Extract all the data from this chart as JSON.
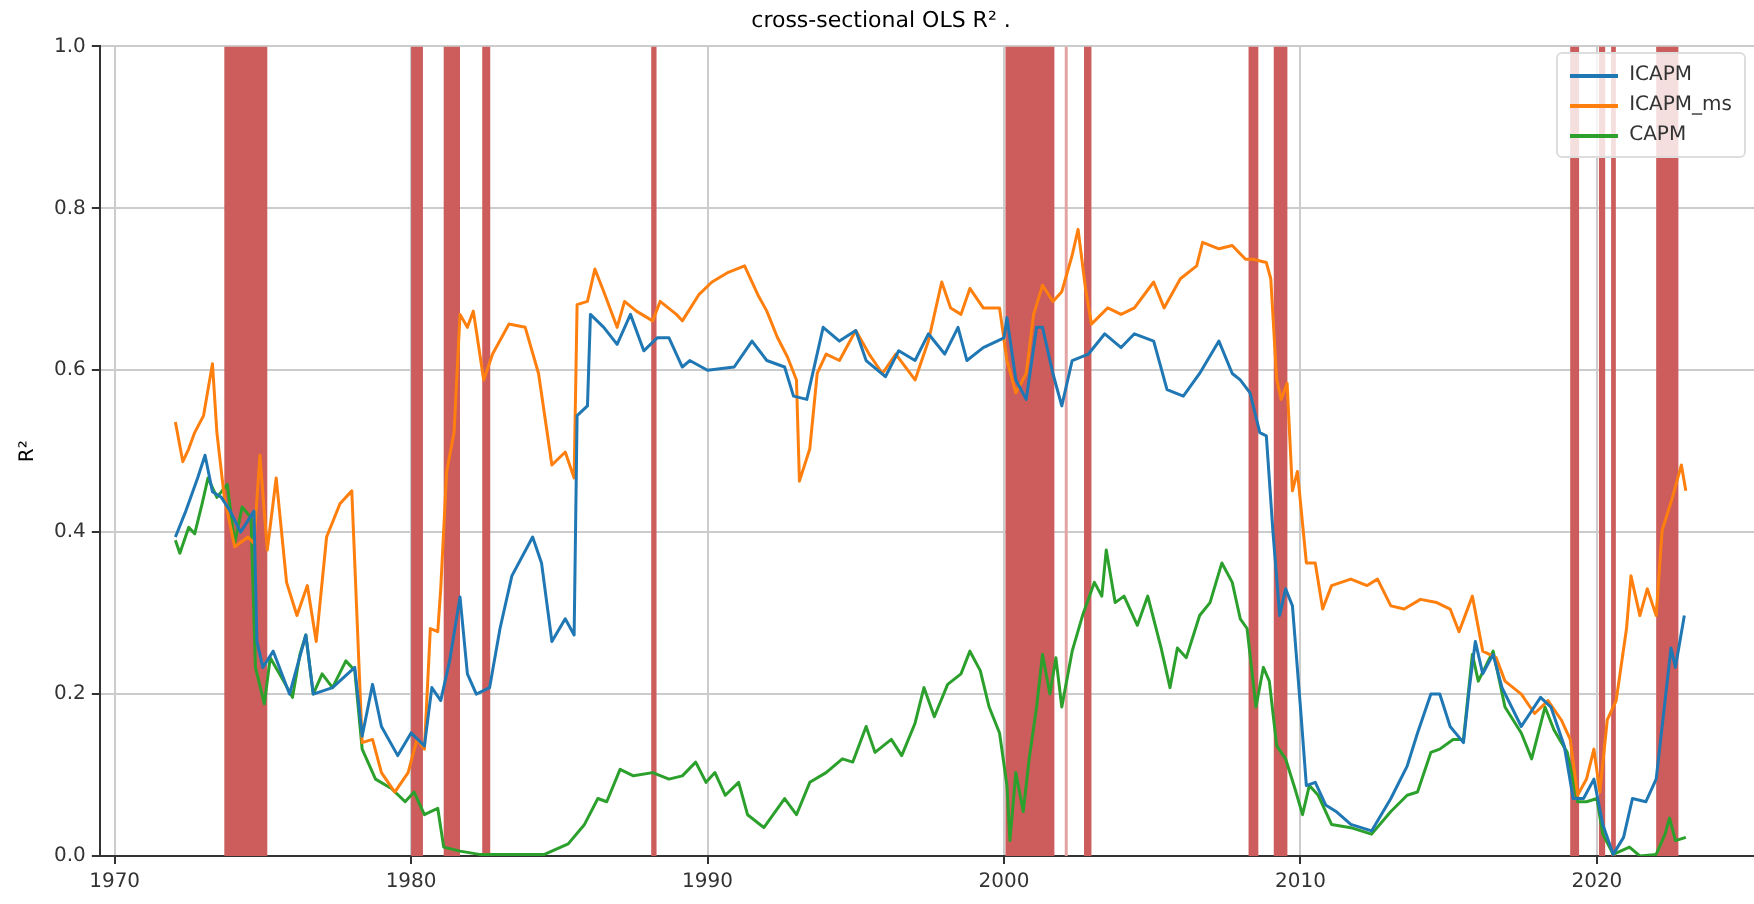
{
  "chart_data": {
    "type": "line",
    "title": "cross-sectional OLS R² .",
    "ylabel": "R²",
    "xlim": [
      1969.5,
      2025.3
    ],
    "xticks": [
      1970,
      1980,
      1990,
      2000,
      2010,
      2020
    ],
    "ylim": [
      0,
      1
    ],
    "yticks": [
      {
        "value": 0,
        "label": "0.0"
      },
      0.2,
      0.4,
      0.6,
      0.8,
      {
        "value": 1,
        "label": "1.0"
      }
    ],
    "grid": true,
    "legend": "top right",
    "marker": "none",
    "line_style": "solid",
    "series": [
      {
        "name": "ICAPM",
        "color": "#1f77b4",
        "x": [
          1972.05,
          1972.4,
          1972.8,
          1973.05,
          1973.3,
          1973.6,
          1973.9,
          1974.25,
          1974.7,
          1974.8,
          1975.0,
          1975.35,
          1975.9,
          1976.45,
          1976.7,
          1977.35,
          1978.1,
          1978.35,
          1978.7,
          1979.0,
          1979.55,
          1980.0,
          1980.45,
          1980.7,
          1981.0,
          1981.3,
          1981.65,
          1981.9,
          1982.2,
          1982.65,
          1983.0,
          1983.4,
          1984.1,
          1984.4,
          1984.75,
          1985.2,
          1985.5,
          1985.6,
          1985.95,
          1986.05,
          1986.5,
          1986.95,
          1987.4,
          1987.85,
          1988.3,
          1988.7,
          1989.15,
          1989.4,
          1990.0,
          1990.9,
          1991.5,
          1992.0,
          1992.6,
          1992.9,
          1993.35,
          1993.9,
          1994.45,
          1995.0,
          1995.35,
          1996.0,
          1996.45,
          1997.0,
          1997.45,
          1998.0,
          1998.45,
          1998.75,
          1999.3,
          2000.0,
          2000.1,
          2000.4,
          2000.75,
          2001.1,
          2001.3,
          2001.65,
          2001.95,
          2002.3,
          2002.85,
          2003.4,
          2003.95,
          2004.4,
          2005.05,
          2005.5,
          2006.05,
          2006.6,
          2007.25,
          2007.7,
          2007.97,
          2008.3,
          2008.63,
          2008.85,
          2009.07,
          2009.3,
          2009.5,
          2009.73,
          2010.0,
          2010.2,
          2010.5,
          2010.85,
          2011.2,
          2011.7,
          2012.4,
          2013.05,
          2013.6,
          2013.95,
          2014.4,
          2014.7,
          2015.05,
          2015.5,
          2015.7,
          2015.9,
          2016.15,
          2016.5,
          2016.8,
          2017.45,
          2018.1,
          2018.45,
          2018.9,
          2019.2,
          2019.55,
          2019.9,
          2020.2,
          2020.55,
          2020.9,
          2021.2,
          2021.65,
          2022.0,
          2022.3,
          2022.5,
          2022.65,
          2022.95
        ],
        "values": [
          0.394,
          0.426,
          0.467,
          0.495,
          0.45,
          0.443,
          0.426,
          0.4,
          0.426,
          0.265,
          0.233,
          0.253,
          0.2,
          0.273,
          0.2,
          0.208,
          0.233,
          0.148,
          0.212,
          0.16,
          0.124,
          0.152,
          0.136,
          0.208,
          0.192,
          0.241,
          0.32,
          0.225,
          0.2,
          0.208,
          0.281,
          0.346,
          0.394,
          0.362,
          0.265,
          0.293,
          0.273,
          0.544,
          0.556,
          0.669,
          0.653,
          0.632,
          0.669,
          0.624,
          0.64,
          0.64,
          0.604,
          0.612,
          0.6,
          0.604,
          0.636,
          0.612,
          0.604,
          0.568,
          0.564,
          0.653,
          0.636,
          0.649,
          0.612,
          0.592,
          0.624,
          0.612,
          0.645,
          0.62,
          0.653,
          0.612,
          0.628,
          0.64,
          0.665,
          0.588,
          0.564,
          0.653,
          0.653,
          0.596,
          0.556,
          0.612,
          0.62,
          0.645,
          0.628,
          0.645,
          0.636,
          0.576,
          0.568,
          0.596,
          0.636,
          0.596,
          0.588,
          0.572,
          0.523,
          0.519,
          0.402,
          0.297,
          0.33,
          0.309,
          0.184,
          0.087,
          0.091,
          0.063,
          0.055,
          0.039,
          0.031,
          0.071,
          0.111,
          0.152,
          0.2,
          0.2,
          0.16,
          0.14,
          0.208,
          0.265,
          0.225,
          0.249,
          0.208,
          0.16,
          0.196,
          0.184,
          0.136,
          0.071,
          0.071,
          0.095,
          0.039,
          0.002,
          0.023,
          0.071,
          0.067,
          0.095,
          0.192,
          0.257,
          0.233,
          0.297
        ]
      },
      {
        "name": "ICAPM_ms",
        "color": "#ff7f0e",
        "x": [
          1972.05,
          1972.3,
          1972.5,
          1972.7,
          1973.0,
          1973.3,
          1973.45,
          1973.7,
          1974.05,
          1974.5,
          1974.7,
          1974.9,
          1975.15,
          1975.45,
          1975.8,
          1976.15,
          1976.5,
          1976.8,
          1977.15,
          1977.6,
          1978.0,
          1978.35,
          1978.7,
          1979.0,
          1979.45,
          1979.9,
          1980.2,
          1980.45,
          1980.65,
          1980.9,
          1981.0,
          1981.2,
          1981.45,
          1981.65,
          1981.9,
          1982.1,
          1982.45,
          1982.75,
          1983.3,
          1983.85,
          1984.3,
          1984.75,
          1985.2,
          1985.5,
          1985.6,
          1985.95,
          1986.2,
          1986.5,
          1986.95,
          1987.2,
          1987.6,
          1988.15,
          1988.4,
          1988.95,
          1989.15,
          1989.7,
          1990.15,
          1990.7,
          1991.25,
          1991.7,
          1992.0,
          1992.35,
          1992.7,
          1993.0,
          1993.1,
          1993.45,
          1993.7,
          1994.0,
          1994.45,
          1995.0,
          1995.45,
          1995.9,
          1996.35,
          1997.0,
          1997.45,
          1997.9,
          1998.2,
          1998.55,
          1998.85,
          1999.3,
          1999.85,
          2000.1,
          2000.4,
          2000.75,
          2001.0,
          2001.3,
          2001.65,
          2001.95,
          2002.3,
          2002.5,
          2002.75,
          2002.95,
          2003.5,
          2003.95,
          2004.4,
          2005.05,
          2005.4,
          2005.95,
          2006.5,
          2006.7,
          2007.25,
          2007.7,
          2008.15,
          2008.4,
          2008.85,
          2009.0,
          2009.2,
          2009.35,
          2009.55,
          2009.73,
          2009.9,
          2010.2,
          2010.5,
          2010.75,
          2011.05,
          2011.7,
          2012.25,
          2012.6,
          2013.05,
          2013.5,
          2014.05,
          2014.6,
          2015.05,
          2015.35,
          2015.8,
          2016.15,
          2016.6,
          2016.9,
          2017.45,
          2017.9,
          2018.35,
          2018.8,
          2019.1,
          2019.35,
          2019.65,
          2019.9,
          2020.1,
          2020.35,
          2020.65,
          2021.0,
          2021.15,
          2021.45,
          2021.7,
          2022.0,
          2022.2,
          2022.55,
          2022.85,
          2023.0
        ],
        "values": [
          0.536,
          0.487,
          0.503,
          0.523,
          0.544,
          0.608,
          0.523,
          0.443,
          0.382,
          0.394,
          0.386,
          0.495,
          0.378,
          0.467,
          0.338,
          0.297,
          0.334,
          0.265,
          0.394,
          0.435,
          0.451,
          0.14,
          0.144,
          0.103,
          0.079,
          0.103,
          0.144,
          0.132,
          0.281,
          0.277,
          0.33,
          0.475,
          0.523,
          0.669,
          0.653,
          0.673,
          0.588,
          0.62,
          0.657,
          0.653,
          0.596,
          0.483,
          0.499,
          0.467,
          0.681,
          0.685,
          0.725,
          0.697,
          0.653,
          0.685,
          0.673,
          0.661,
          0.685,
          0.669,
          0.661,
          0.693,
          0.709,
          0.721,
          0.729,
          0.693,
          0.673,
          0.641,
          0.616,
          0.588,
          0.463,
          0.503,
          0.596,
          0.62,
          0.612,
          0.649,
          0.62,
          0.596,
          0.62,
          0.588,
          0.636,
          0.709,
          0.677,
          0.669,
          0.701,
          0.677,
          0.677,
          0.612,
          0.572,
          0.596,
          0.669,
          0.705,
          0.685,
          0.697,
          0.742,
          0.774,
          0.701,
          0.657,
          0.677,
          0.669,
          0.677,
          0.709,
          0.677,
          0.713,
          0.729,
          0.758,
          0.75,
          0.754,
          0.737,
          0.737,
          0.733,
          0.713,
          0.588,
          0.564,
          0.584,
          0.451,
          0.475,
          0.362,
          0.362,
          0.305,
          0.334,
          0.342,
          0.334,
          0.342,
          0.309,
          0.305,
          0.317,
          0.313,
          0.305,
          0.277,
          0.321,
          0.253,
          0.245,
          0.216,
          0.2,
          0.176,
          0.192,
          0.168,
          0.144,
          0.075,
          0.095,
          0.132,
          0.079,
          0.168,
          0.192,
          0.281,
          0.346,
          0.297,
          0.33,
          0.297,
          0.402,
          0.443,
          0.483,
          0.451
        ]
      },
      {
        "name": "CAPM",
        "color": "#2ca02c",
        "x": [
          1972.05,
          1972.2,
          1972.5,
          1972.7,
          1972.95,
          1973.15,
          1973.45,
          1973.8,
          1974.05,
          1974.3,
          1974.6,
          1974.75,
          1975.05,
          1975.25,
          1975.7,
          1976.0,
          1976.25,
          1976.45,
          1976.7,
          1977.0,
          1977.35,
          1977.8,
          1978.1,
          1978.35,
          1978.8,
          1979.35,
          1979.8,
          1980.1,
          1980.45,
          1980.9,
          1981.1,
          1981.65,
          1982.3,
          1983.2,
          1984.5,
          1985.3,
          1985.85,
          1986.3,
          1986.6,
          1987.05,
          1987.5,
          1988.15,
          1988.7,
          1989.15,
          1989.6,
          1989.95,
          1990.25,
          1990.6,
          1991.05,
          1991.35,
          1991.9,
          1992.6,
          1993.0,
          1993.45,
          1994.0,
          1994.55,
          1994.9,
          1995.35,
          1995.65,
          1996.2,
          1996.55,
          1997.0,
          1997.3,
          1997.65,
          1998.1,
          1998.55,
          1998.85,
          1999.2,
          1999.5,
          1999.85,
          2000.1,
          2000.2,
          2000.4,
          2000.65,
          2000.85,
          2001.1,
          2001.3,
          2001.55,
          2001.75,
          2001.95,
          2002.3,
          2002.65,
          2003.05,
          2003.3,
          2003.45,
          2003.75,
          2004.05,
          2004.5,
          2004.85,
          2005.3,
          2005.6,
          2005.85,
          2006.15,
          2006.6,
          2006.95,
          2007.35,
          2007.7,
          2007.97,
          2008.2,
          2008.5,
          2008.75,
          2008.95,
          2009.2,
          2009.5,
          2009.85,
          2010.07,
          2010.3,
          2010.6,
          2011.05,
          2011.7,
          2012.4,
          2013.05,
          2013.6,
          2013.95,
          2014.4,
          2014.7,
          2015.15,
          2015.5,
          2015.8,
          2016.0,
          2016.5,
          2016.9,
          2017.45,
          2017.8,
          2018.25,
          2018.55,
          2019.0,
          2019.35,
          2019.65,
          2020.0,
          2020.2,
          2020.55,
          2021.1,
          2021.45,
          2022.0,
          2022.3,
          2022.45,
          2022.65,
          2023.0
        ],
        "values": [
          0.39,
          0.374,
          0.406,
          0.398,
          0.435,
          0.467,
          0.443,
          0.459,
          0.386,
          0.431,
          0.418,
          0.233,
          0.188,
          0.245,
          0.216,
          0.196,
          0.249,
          0.273,
          0.2,
          0.225,
          0.208,
          0.241,
          0.229,
          0.132,
          0.095,
          0.083,
          0.067,
          0.079,
          0.051,
          0.059,
          0.011,
          0.006,
          0.002,
          0.002,
          0.002,
          0.015,
          0.039,
          0.071,
          0.067,
          0.107,
          0.099,
          0.103,
          0.095,
          0.099,
          0.116,
          0.091,
          0.103,
          0.075,
          0.091,
          0.051,
          0.035,
          0.071,
          0.051,
          0.091,
          0.103,
          0.12,
          0.116,
          0.16,
          0.128,
          0.144,
          0.124,
          0.164,
          0.208,
          0.172,
          0.212,
          0.225,
          0.253,
          0.229,
          0.184,
          0.152,
          0.087,
          0.019,
          0.103,
          0.055,
          0.12,
          0.184,
          0.249,
          0.2,
          0.245,
          0.184,
          0.253,
          0.297,
          0.338,
          0.321,
          0.378,
          0.313,
          0.321,
          0.285,
          0.321,
          0.257,
          0.208,
          0.257,
          0.245,
          0.297,
          0.313,
          0.362,
          0.338,
          0.293,
          0.281,
          0.184,
          0.233,
          0.216,
          0.136,
          0.12,
          0.079,
          0.051,
          0.087,
          0.075,
          0.039,
          0.035,
          0.027,
          0.055,
          0.075,
          0.079,
          0.128,
          0.132,
          0.144,
          0.144,
          0.249,
          0.216,
          0.253,
          0.184,
          0.152,
          0.12,
          0.184,
          0.156,
          0.128,
          0.067,
          0.067,
          0.071,
          0.027,
          0.002,
          0.011,
          0,
          0.002,
          0.027,
          0.047,
          0.019,
          0.023
        ]
      }
    ],
    "bands": [
      {
        "axis": "x",
        "from": 1973.7,
        "to": 1975.15,
        "color": "#cd5c5c"
      },
      {
        "axis": "x",
        "from": 1980.0,
        "to": 1980.4,
        "color": "#cd5c5c"
      },
      {
        "axis": "x",
        "from": 1981.1,
        "to": 1981.65,
        "color": "#cd5c5c"
      },
      {
        "axis": "x",
        "from": 1982.4,
        "to": 1982.67,
        "color": "#cd5c5c"
      },
      {
        "axis": "x",
        "from": 1988.1,
        "to": 1988.28,
        "color": "#cd5c5c"
      },
      {
        "axis": "x",
        "from": 2000.05,
        "to": 2001.7,
        "color": "#cd5c5c"
      },
      {
        "axis": "x",
        "from": 2002.05,
        "to": 2002.15,
        "color": "#e3a3a3"
      },
      {
        "axis": "x",
        "from": 2002.7,
        "to": 2002.95,
        "color": "#cd5c5c"
      },
      {
        "axis": "x",
        "from": 2008.25,
        "to": 2008.58,
        "color": "#cd5c5c"
      },
      {
        "axis": "x",
        "from": 2009.1,
        "to": 2009.56,
        "color": "#cd5c5c"
      },
      {
        "axis": "x",
        "from": 2019.1,
        "to": 2019.4,
        "color": "#cd5c5c"
      },
      {
        "axis": "x",
        "from": 2020.07,
        "to": 2020.28,
        "color": "#cd5c5c"
      },
      {
        "axis": "x",
        "from": 2020.48,
        "to": 2020.64,
        "color": "#cd5c5c"
      },
      {
        "axis": "x",
        "from": 2022.0,
        "to": 2022.75,
        "color": "#cd5c5c"
      }
    ]
  }
}
